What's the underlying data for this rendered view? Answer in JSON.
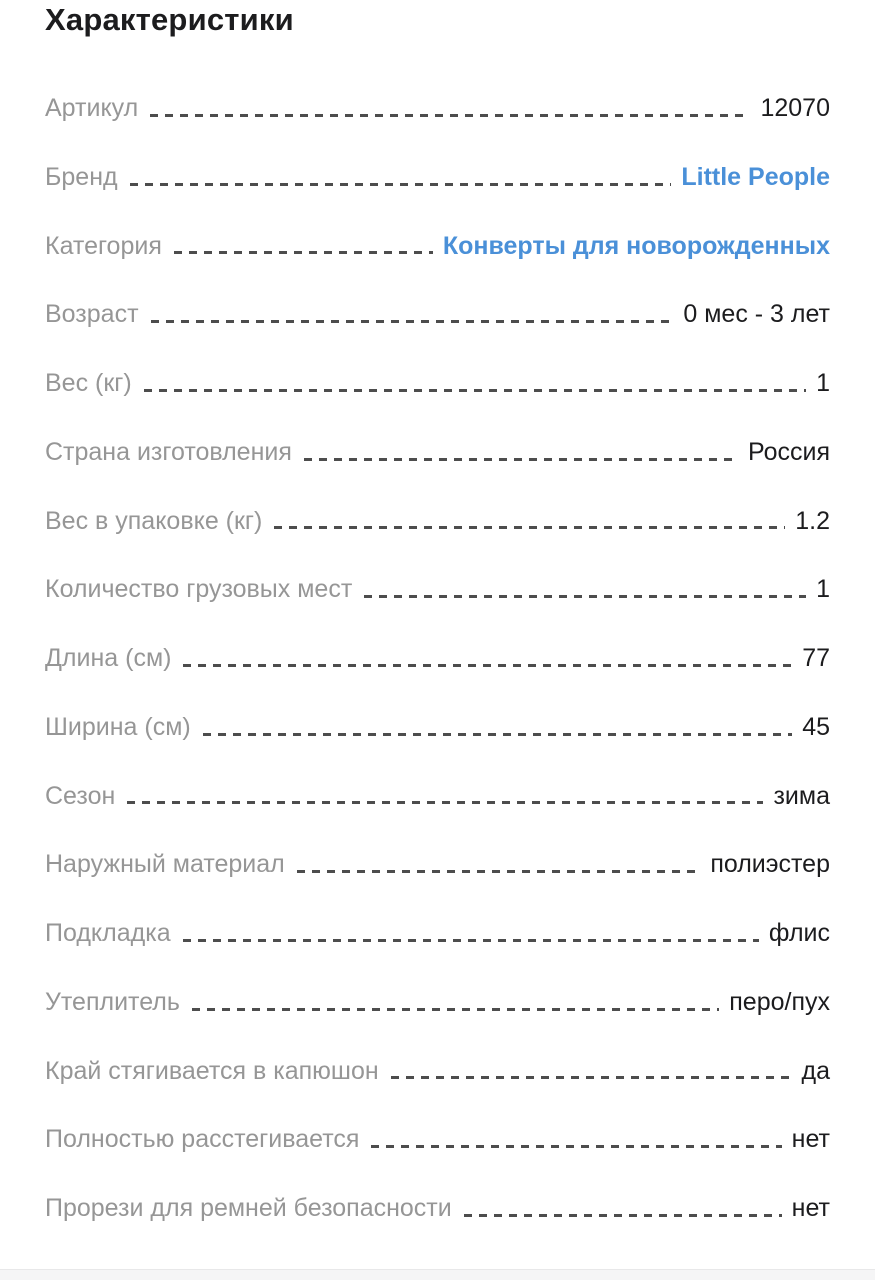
{
  "page": {
    "title": "Характеристики"
  },
  "colors": {
    "background": "#ffffff",
    "title": "#1c1c1e",
    "label": "#969696",
    "value": "#1c1c1e",
    "link": "#4a90d8",
    "leader_dash": "#4d4d4d",
    "bottom_strip": "#f5f5f6"
  },
  "characteristics": [
    {
      "label": "Артикул",
      "value": "12070",
      "is_link": false
    },
    {
      "label": "Бренд",
      "value": "Little People",
      "is_link": true
    },
    {
      "label": "Категория",
      "value": "Конверты для новорожденных",
      "is_link": true
    },
    {
      "label": "Возраст",
      "value": "0 мес - 3 лет",
      "is_link": false
    },
    {
      "label": "Вес (кг)",
      "value": "1",
      "is_link": false
    },
    {
      "label": "Страна изготовления",
      "value": "Россия",
      "is_link": false
    },
    {
      "label": "Вес в упаковке (кг)",
      "value": "1.2",
      "is_link": false
    },
    {
      "label": "Количество грузовых мест",
      "value": "1",
      "is_link": false
    },
    {
      "label": "Длина (см)",
      "value": "77",
      "is_link": false
    },
    {
      "label": "Ширина (см)",
      "value": "45",
      "is_link": false
    },
    {
      "label": "Сезон",
      "value": "зима",
      "is_link": false
    },
    {
      "label": "Наружный материал",
      "value": "полиэстер",
      "is_link": false
    },
    {
      "label": "Подкладка",
      "value": "флис",
      "is_link": false
    },
    {
      "label": "Утеплитель",
      "value": "перо/пух",
      "is_link": false
    },
    {
      "label": "Край стягивается в капюшон",
      "value": "да",
      "is_link": false
    },
    {
      "label": "Полностью расстегивается",
      "value": "нет",
      "is_link": false
    },
    {
      "label": "Прорези для ремней безопасности",
      "value": "нет",
      "is_link": false
    }
  ]
}
